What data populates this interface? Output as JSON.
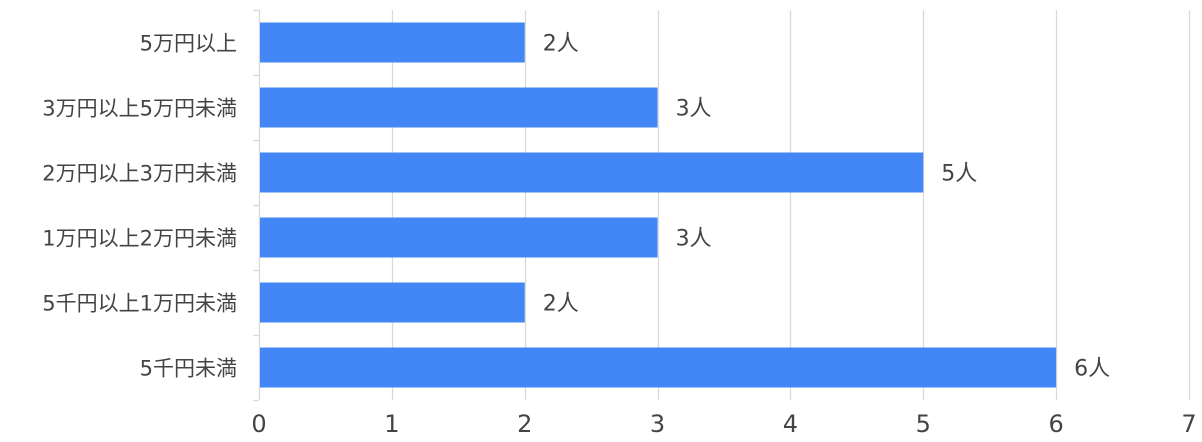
{
  "chart_data": {
    "type": "bar",
    "orientation": "horizontal",
    "categories": [
      "5万円以上",
      "3万円以上5万円未満",
      "2万円以上3万円未満",
      "1万円以上2万円未満",
      "5千円以上1万円未満",
      "5千円未満"
    ],
    "values": [
      2,
      3,
      5,
      3,
      2,
      6
    ],
    "data_labels": [
      "2人",
      "3人",
      "5人",
      "3人",
      "2人",
      "6人"
    ],
    "x_ticks": [
      "0",
      "1",
      "2",
      "3",
      "4",
      "5",
      "6",
      "7"
    ],
    "xlim": [
      0,
      7
    ],
    "grid": true,
    "legend": "none",
    "bar_color": "#4287f5",
    "grid_color": "#d9d9d9",
    "text_color": "#444444"
  }
}
